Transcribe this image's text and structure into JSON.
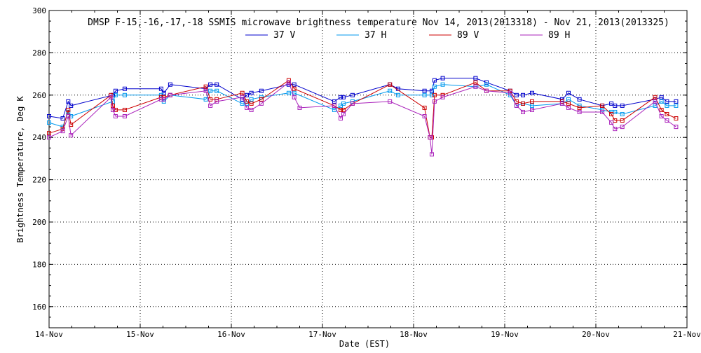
{
  "chart_data": {
    "type": "line",
    "title": "DMSP F-15,-16,-17,-18 SSMIS microwave brightness temperature Nov 14, 2013(2013318) - Nov 21, 2013(2013325)",
    "xlabel": "Date (EST)",
    "ylabel": "Brightness Temperature, Deg K",
    "xlim": [
      0,
      7
    ],
    "ylim": [
      150,
      300
    ],
    "grid": true,
    "legend_position": "top-center",
    "x_ticks": [
      {
        "value": 0,
        "label": "14-Nov"
      },
      {
        "value": 1,
        "label": "15-Nov"
      },
      {
        "value": 2,
        "label": "16-Nov"
      },
      {
        "value": 3,
        "label": "17-Nov"
      },
      {
        "value": 4,
        "label": "18-Nov"
      },
      {
        "value": 5,
        "label": "19-Nov"
      },
      {
        "value": 6,
        "label": "20-Nov"
      },
      {
        "value": 7,
        "label": "21-Nov"
      }
    ],
    "y_ticks": [
      {
        "value": 160,
        "label": "160"
      },
      {
        "value": 180,
        "label": "180"
      },
      {
        "value": 200,
        "label": "200"
      },
      {
        "value": 220,
        "label": "220"
      },
      {
        "value": 240,
        "label": "240"
      },
      {
        "value": 260,
        "label": "260"
      },
      {
        "value": 280,
        "label": "280"
      },
      {
        "value": 300,
        "label": "300"
      }
    ],
    "series": [
      {
        "name": "37 V",
        "color": "#0000cc",
        "x": [
          0.0,
          0.15,
          0.21,
          0.24,
          0.7,
          0.73,
          0.83,
          1.23,
          1.26,
          1.33,
          1.72,
          1.77,
          1.84,
          2.12,
          2.17,
          2.22,
          2.33,
          2.63,
          2.69,
          3.13,
          3.2,
          3.23,
          3.33,
          3.74,
          3.83,
          4.12,
          4.2,
          4.23,
          4.32,
          4.68,
          4.8,
          5.06,
          5.13,
          5.2,
          5.3,
          5.63,
          5.7,
          5.82,
          6.07,
          6.17,
          6.21,
          6.29,
          6.65,
          6.72,
          6.78,
          6.88
        ],
        "y": [
          250,
          249,
          257,
          255,
          260,
          262,
          263,
          263,
          261,
          265,
          263,
          265,
          265,
          258,
          260,
          261,
          262,
          265,
          265,
          257,
          259,
          259,
          260,
          265,
          263,
          262,
          262,
          267,
          268,
          268,
          266,
          262,
          260,
          260,
          261,
          258,
          261,
          258,
          255,
          256,
          255,
          255,
          258,
          259,
          257,
          257
        ]
      },
      {
        "name": "37 H",
        "color": "#0099ee",
        "x": [
          0.0,
          0.15,
          0.21,
          0.24,
          0.7,
          0.73,
          0.83,
          1.23,
          1.26,
          1.33,
          1.72,
          1.77,
          1.84,
          2.12,
          2.17,
          2.22,
          2.33,
          2.63,
          2.69,
          3.13,
          3.2,
          3.23,
          3.33,
          3.74,
          3.83,
          4.12,
          4.2,
          4.23,
          4.32,
          4.68,
          4.8,
          5.06,
          5.13,
          5.2,
          5.3,
          5.63,
          5.7,
          5.82,
          6.07,
          6.17,
          6.21,
          6.29,
          6.65,
          6.72,
          6.78,
          6.88
        ],
        "y": [
          247,
          245,
          252,
          250,
          257,
          260,
          260,
          260,
          257,
          260,
          258,
          262,
          262,
          256,
          256,
          258,
          259,
          261,
          261,
          253,
          255,
          256,
          257,
          262,
          260,
          260,
          260,
          264,
          265,
          264,
          265,
          260,
          255,
          256,
          255,
          256,
          258,
          255,
          253,
          252,
          252,
          251,
          255,
          257,
          255,
          255
        ]
      },
      {
        "name": "89 V",
        "color": "#cc0000",
        "x": [
          0.0,
          0.15,
          0.21,
          0.24,
          0.68,
          0.7,
          0.73,
          0.83,
          1.23,
          1.26,
          1.33,
          1.72,
          1.77,
          1.84,
          2.12,
          2.17,
          2.22,
          2.33,
          2.63,
          2.69,
          3.13,
          3.2,
          3.23,
          3.33,
          3.74,
          4.12,
          4.18,
          4.2,
          4.23,
          4.32,
          4.68,
          4.8,
          5.06,
          5.13,
          5.2,
          5.3,
          5.63,
          5.7,
          5.82,
          6.07,
          6.17,
          6.21,
          6.29,
          6.65,
          6.72,
          6.78,
          6.88
        ],
        "y": [
          242,
          244,
          253,
          246,
          260,
          255,
          253,
          253,
          259,
          259,
          260,
          264,
          258,
          258,
          261,
          257,
          256,
          258,
          267,
          263,
          255,
          253,
          253,
          256,
          265,
          254,
          240,
          240,
          260,
          260,
          266,
          262,
          262,
          257,
          256,
          257,
          257,
          256,
          254,
          255,
          251,
          248,
          248,
          259,
          253,
          251,
          249
        ]
      },
      {
        "name": "89 H",
        "color": "#aa22bb",
        "x": [
          0.0,
          0.15,
          0.21,
          0.24,
          0.68,
          0.7,
          0.73,
          0.83,
          1.23,
          1.26,
          1.33,
          1.72,
          1.77,
          1.84,
          2.12,
          2.17,
          2.22,
          2.33,
          2.63,
          2.69,
          2.75,
          3.13,
          3.2,
          3.23,
          3.33,
          3.74,
          4.12,
          4.18,
          4.2,
          4.23,
          4.32,
          4.68,
          4.8,
          5.06,
          5.13,
          5.2,
          5.3,
          5.63,
          5.7,
          5.82,
          6.07,
          6.17,
          6.21,
          6.29,
          6.65,
          6.72,
          6.78,
          6.88
        ],
        "y": [
          240,
          243,
          250,
          241,
          259,
          253,
          250,
          250,
          258,
          258,
          260,
          262,
          255,
          257,
          259,
          254,
          253,
          256,
          266,
          259,
          254,
          255,
          249,
          251,
          256,
          257,
          250,
          240,
          232,
          257,
          259,
          264,
          262,
          261,
          255,
          252,
          253,
          256,
          254,
          252,
          252,
          247,
          244,
          245,
          257,
          250,
          248,
          245
        ]
      }
    ]
  }
}
